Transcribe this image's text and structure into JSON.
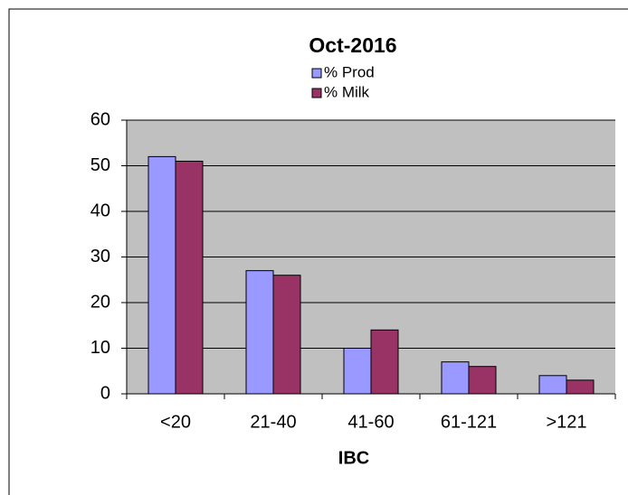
{
  "chart_data": {
    "type": "bar",
    "title": "Oct-2016",
    "x_label": "IBC",
    "categories": [
      "<20",
      "21-40",
      "41-60",
      "61-121",
      ">121"
    ],
    "series": [
      {
        "name": "% Prod",
        "color": "#9999ff",
        "values": [
          52,
          27,
          10,
          7,
          4
        ]
      },
      {
        "name": "% Milk",
        "color": "#993366",
        "values": [
          51,
          26,
          14,
          6,
          3
        ]
      }
    ],
    "ylim": [
      0,
      60
    ],
    "yticks": [
      0,
      10,
      20,
      30,
      40,
      50,
      60
    ],
    "grid": true,
    "legend": "top"
  }
}
